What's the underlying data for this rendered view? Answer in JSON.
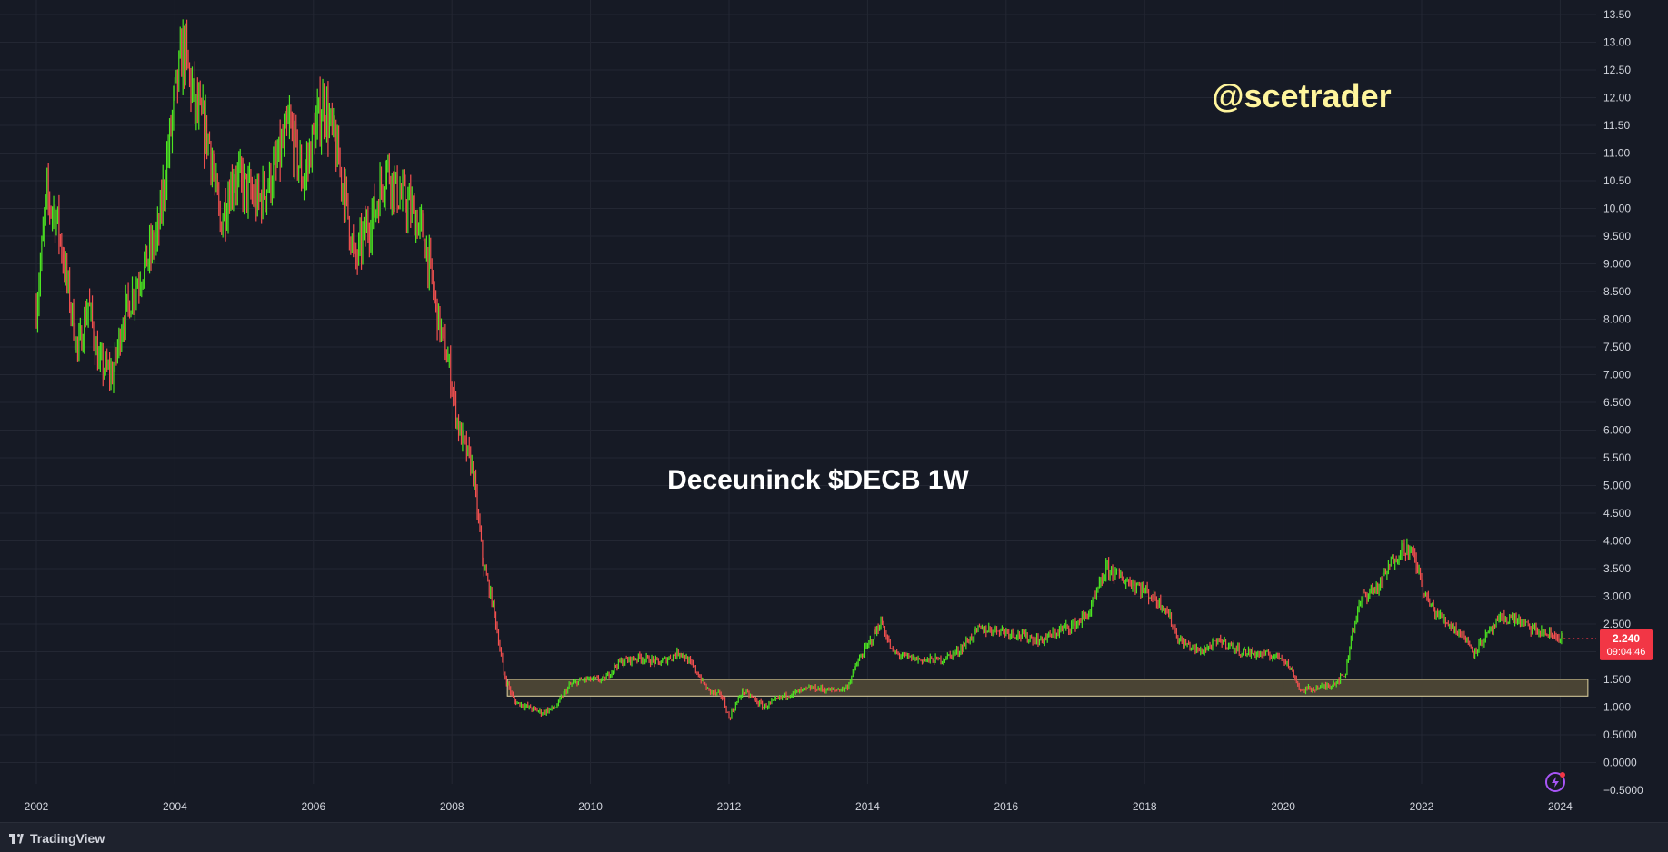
{
  "chart_data": {
    "type": "candlestick",
    "ticker": "DECB",
    "timeframe": "1W",
    "title": "Deceuninck $DECB 1W",
    "watermark": "@scetrader",
    "ylim": [
      -0.5,
      13.5
    ],
    "yticks": [
      "13.50",
      "13.00",
      "12.50",
      "12.00",
      "11.50",
      "11.00",
      "10.50",
      "10.00",
      "9.500",
      "9.000",
      "8.500",
      "8.000",
      "7.500",
      "7.000",
      "6.500",
      "6.000",
      "5.500",
      "5.000",
      "4.500",
      "4.000",
      "3.500",
      "3.000",
      "2.500",
      "2.000",
      "1.500",
      "1.000",
      "0.5000",
      "0.0000",
      "−0.5000"
    ],
    "xticks": [
      "2002",
      "2004",
      "2006",
      "2008",
      "2010",
      "2012",
      "2014",
      "2016",
      "2018",
      "2020",
      "2022",
      "2024"
    ],
    "last_price": "2.240",
    "countdown": "09:04:46",
    "support_zone": {
      "from_year": 2008.8,
      "to_year": 2024.4,
      "low": 1.2,
      "high": 1.5
    },
    "price_path": [
      [
        2002.0,
        8.2
      ],
      [
        2002.15,
        10.2
      ],
      [
        2002.3,
        9.8
      ],
      [
        2002.45,
        8.6
      ],
      [
        2002.6,
        7.4
      ],
      [
        2002.75,
        8.3
      ],
      [
        2002.9,
        7.2
      ],
      [
        2003.1,
        7.0
      ],
      [
        2003.25,
        8.0
      ],
      [
        2003.5,
        8.8
      ],
      [
        2003.75,
        9.5
      ],
      [
        2003.9,
        11.0
      ],
      [
        2004.0,
        12.0
      ],
      [
        2004.12,
        12.9
      ],
      [
        2004.3,
        11.8
      ],
      [
        2004.5,
        11.2
      ],
      [
        2004.65,
        9.7
      ],
      [
        2004.85,
        10.6
      ],
      [
        2005.0,
        10.4
      ],
      [
        2005.2,
        10.1
      ],
      [
        2005.45,
        10.7
      ],
      [
        2005.65,
        11.5
      ],
      [
        2005.85,
        10.5
      ],
      [
        2006.0,
        11.3
      ],
      [
        2006.15,
        11.9
      ],
      [
        2006.3,
        11.2
      ],
      [
        2006.45,
        10.3
      ],
      [
        2006.6,
        9.0
      ],
      [
        2006.75,
        9.6
      ],
      [
        2006.9,
        10.0
      ],
      [
        2007.05,
        10.8
      ],
      [
        2007.2,
        10.3
      ],
      [
        2007.4,
        10.0
      ],
      [
        2007.6,
        9.5
      ],
      [
        2007.8,
        8.0
      ],
      [
        2007.95,
        7.2
      ],
      [
        2008.1,
        6.0
      ],
      [
        2008.3,
        5.3
      ],
      [
        2008.45,
        3.6
      ],
      [
        2008.6,
        2.8
      ],
      [
        2008.75,
        1.6
      ],
      [
        2008.9,
        1.1
      ],
      [
        2009.1,
        1.0
      ],
      [
        2009.3,
        0.9
      ],
      [
        2009.5,
        1.0
      ],
      [
        2009.7,
        1.4
      ],
      [
        2009.9,
        1.5
      ],
      [
        2010.2,
        1.5
      ],
      [
        2010.4,
        1.8
      ],
      [
        2010.7,
        1.9
      ],
      [
        2011.0,
        1.8
      ],
      [
        2011.3,
        2.0
      ],
      [
        2011.5,
        1.7
      ],
      [
        2011.7,
        1.3
      ],
      [
        2011.9,
        1.2
      ],
      [
        2012.0,
        0.8
      ],
      [
        2012.2,
        1.3
      ],
      [
        2012.5,
        1.0
      ],
      [
        2012.8,
        1.2
      ],
      [
        2013.2,
        1.35
      ],
      [
        2013.5,
        1.3
      ],
      [
        2013.7,
        1.35
      ],
      [
        2013.85,
        1.8
      ],
      [
        2014.0,
        2.1
      ],
      [
        2014.2,
        2.55
      ],
      [
        2014.35,
        2.0
      ],
      [
        2014.55,
        1.9
      ],
      [
        2014.8,
        1.85
      ],
      [
        2015.05,
        1.85
      ],
      [
        2015.3,
        2.0
      ],
      [
        2015.6,
        2.4
      ],
      [
        2015.9,
        2.4
      ],
      [
        2016.2,
        2.3
      ],
      [
        2016.5,
        2.2
      ],
      [
        2016.8,
        2.4
      ],
      [
        2017.0,
        2.5
      ],
      [
        2017.2,
        2.7
      ],
      [
        2017.45,
        3.5
      ],
      [
        2017.7,
        3.3
      ],
      [
        2017.9,
        3.2
      ],
      [
        2018.1,
        3.0
      ],
      [
        2018.3,
        2.8
      ],
      [
        2018.5,
        2.2
      ],
      [
        2018.8,
        2.0
      ],
      [
        2019.1,
        2.2
      ],
      [
        2019.4,
        2.0
      ],
      [
        2019.7,
        1.95
      ],
      [
        2020.0,
        1.9
      ],
      [
        2020.15,
        1.6
      ],
      [
        2020.25,
        1.3
      ],
      [
        2020.5,
        1.35
      ],
      [
        2020.7,
        1.4
      ],
      [
        2020.9,
        1.6
      ],
      [
        2021.0,
        2.4
      ],
      [
        2021.15,
        3.0
      ],
      [
        2021.4,
        3.2
      ],
      [
        2021.6,
        3.7
      ],
      [
        2021.75,
        3.9
      ],
      [
        2021.9,
        3.7
      ],
      [
        2022.05,
        3.0
      ],
      [
        2022.2,
        2.7
      ],
      [
        2022.4,
        2.5
      ],
      [
        2022.6,
        2.3
      ],
      [
        2022.75,
        2.0
      ],
      [
        2022.95,
        2.3
      ],
      [
        2023.15,
        2.6
      ],
      [
        2023.35,
        2.6
      ],
      [
        2023.6,
        2.4
      ],
      [
        2023.85,
        2.3
      ],
      [
        2024.05,
        2.24
      ]
    ]
  },
  "footer": {
    "brand": "TradingView"
  },
  "colors": {
    "background": "#161a25",
    "grid": "#232733",
    "up": "#4ce621",
    "down": "#f2504f",
    "watermark": "#fff59d",
    "zone_fill": "#4a4434",
    "zone_border": "#e0d4a0",
    "price_tag": "#f23645"
  }
}
